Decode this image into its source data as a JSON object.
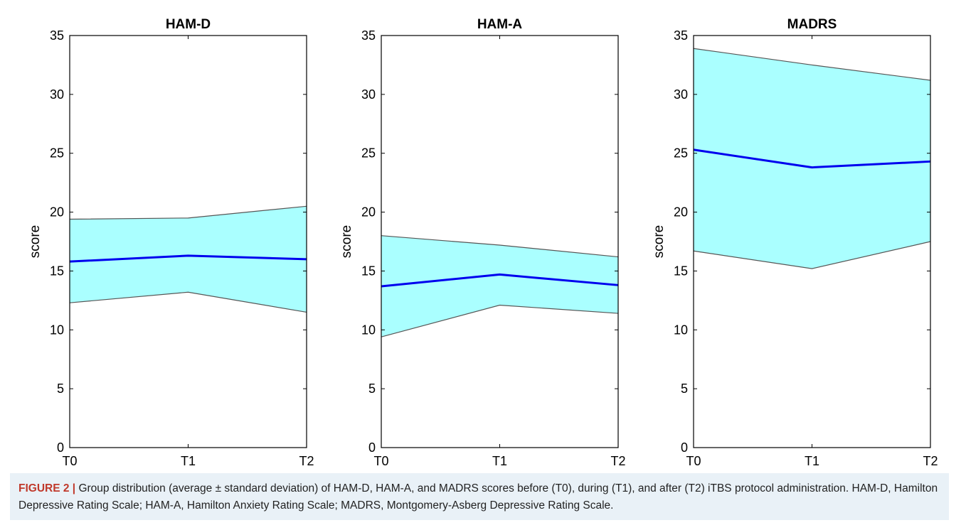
{
  "chart_data": [
    {
      "type": "area",
      "title": "HAM-D",
      "xlabel": "",
      "ylabel": "score",
      "categories": [
        "T0",
        "T1",
        "T2"
      ],
      "ylim": [
        0,
        35
      ],
      "yticks": [
        0,
        5,
        10,
        15,
        20,
        25,
        30,
        35
      ],
      "grid": false,
      "series": [
        {
          "values": [
            15.8,
            16.3,
            16.0
          ]
        }
      ],
      "band_upper": [
        19.4,
        19.5,
        20.5
      ],
      "band_lower": [
        12.3,
        13.2,
        11.5
      ]
    },
    {
      "type": "area",
      "title": "HAM-A",
      "xlabel": "",
      "ylabel": "score",
      "categories": [
        "T0",
        "T1",
        "T2"
      ],
      "ylim": [
        0,
        35
      ],
      "yticks": [
        0,
        5,
        10,
        15,
        20,
        25,
        30,
        35
      ],
      "grid": false,
      "series": [
        {
          "values": [
            13.7,
            14.7,
            13.8
          ]
        }
      ],
      "band_upper": [
        18.0,
        17.2,
        16.2
      ],
      "band_lower": [
        9.4,
        12.1,
        11.4
      ]
    },
    {
      "type": "area",
      "title": "MADRS",
      "xlabel": "",
      "ylabel": "score",
      "categories": [
        "T0",
        "T1",
        "T2"
      ],
      "ylim": [
        0,
        35
      ],
      "yticks": [
        0,
        5,
        10,
        15,
        20,
        25,
        30,
        35
      ],
      "grid": false,
      "series": [
        {
          "values": [
            25.3,
            23.8,
            24.3
          ]
        }
      ],
      "band_upper": [
        33.9,
        32.5,
        31.2
      ],
      "band_lower": [
        16.7,
        15.2,
        17.5
      ]
    }
  ],
  "colors": {
    "band_fill": "#aaffff",
    "band_edge": "#555555",
    "mean_line": "#0000ee",
    "axis": "#000000"
  },
  "caption": {
    "label": "FIGURE 2",
    "separator": "|",
    "text": "Group distribution (average ± standard deviation) of HAM-D, HAM-A, and MADRS scores before (T0), during (T1), and after (T2) iTBS protocol administration. HAM-D, Hamilton Depressive Rating Scale; HAM-A, Hamilton Anxiety Rating Scale; MADRS, Montgomery-Asberg Depressive Rating Scale."
  }
}
